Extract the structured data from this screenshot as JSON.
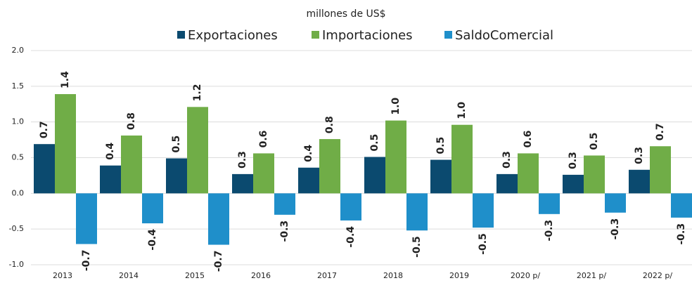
{
  "chart_data": {
    "type": "bar",
    "subtitle": "millones de US$",
    "categories": [
      "2013",
      "2014",
      "2015",
      "2016",
      "2017",
      "2018",
      "2019",
      "2020 p/",
      "2021 p/",
      "2022 p/"
    ],
    "series": [
      {
        "name": "Exportaciones",
        "color": "#0b4a6f",
        "values": [
          0.69,
          0.39,
          0.49,
          0.27,
          0.36,
          0.51,
          0.47,
          0.27,
          0.26,
          0.33
        ],
        "value_labels": [
          "0.7",
          "0.4",
          "0.5",
          "0.3",
          "0.4",
          "0.5",
          "0.5",
          "0.3",
          "0.3",
          "0.3"
        ]
      },
      {
        "name": "Importaciones",
        "color": "#70ad47",
        "values": [
          1.39,
          0.81,
          1.21,
          0.56,
          0.76,
          1.02,
          0.96,
          0.56,
          0.53,
          0.66
        ],
        "value_labels": [
          "1.4",
          "0.8",
          "1.2",
          "0.6",
          "0.8",
          "1.0",
          "1.0",
          "0.6",
          "0.5",
          "0.7"
        ]
      },
      {
        "name": "SaldoComercial",
        "color": "#1f8fca",
        "values": [
          -0.71,
          -0.42,
          -0.72,
          -0.3,
          -0.38,
          -0.52,
          -0.48,
          -0.29,
          -0.27,
          -0.34
        ],
        "value_labels": [
          "-0.7",
          "-0.4",
          "-0.7",
          "-0.3",
          "-0.4",
          "-0.5",
          "-0.5",
          "-0.3",
          "-0.3",
          "-0.3"
        ]
      }
    ],
    "ylim": [
      -1.0,
      2.0
    ],
    "yticks": [
      {
        "value": 2,
        "label": "2.0"
      },
      1.5,
      {
        "value": 1,
        "label": "1.0"
      },
      0.5,
      {
        "value": 0,
        "label": "0.0"
      },
      -0.5,
      {
        "value": -1,
        "label": "-1.0"
      }
    ],
    "grid": true
  }
}
